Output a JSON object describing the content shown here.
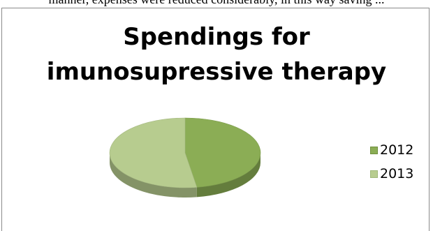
{
  "page": {
    "top_text": "manner, expenses were reduced considerably, in this way saving ..."
  },
  "chart_data": {
    "type": "pie",
    "title": "Spendings for imunosupressive therapy",
    "title_lines": [
      "Spendings for",
      "imunosupressive therapy"
    ],
    "categories": [
      "2012",
      "2013"
    ],
    "values": [
      47.5,
      52.5
    ],
    "colors": [
      "#8bad55",
      "#b7cc8f"
    ],
    "legend_position": "right",
    "style": "3d"
  }
}
